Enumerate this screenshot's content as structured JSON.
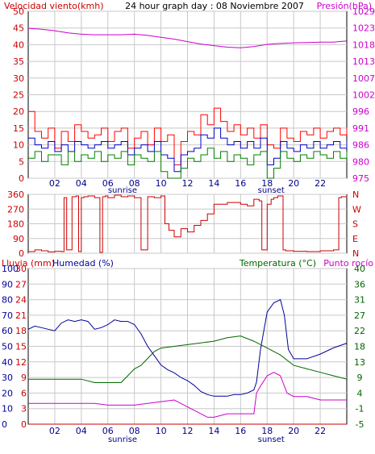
{
  "chart_data": [
    {
      "type": "line",
      "title": "24 hour graph day : 08 Noviembre 2007",
      "left_label": "Velocidad viento(kmh)",
      "right_label": "Presión(hPa)",
      "left_ticks": [
        0,
        5,
        10,
        15,
        20,
        25,
        30,
        35,
        40,
        45,
        50
      ],
      "left_range": [
        0,
        50
      ],
      "right_ticks": [
        975,
        980,
        986,
        991,
        996,
        1002,
        1007,
        1013,
        1018,
        1023,
        1029
      ],
      "right_range": [
        975,
        1029
      ],
      "x_ticks": [
        "02",
        "04",
        "06",
        "08",
        "10",
        "12",
        "14",
        "16",
        "18",
        "20",
        "22"
      ],
      "x_range": [
        0,
        24
      ],
      "sunrise_label": "sunrise",
      "sunset_label": "sunset",
      "sunrise_hour": 7.1,
      "sunset_hour": 18.3,
      "colors": {
        "gust": "#ff0000",
        "avg": "#0000cc",
        "min": "#008000",
        "pressure": "#cc00cc",
        "left_axis": "#cc0000",
        "right_axis": "#cc00cc"
      },
      "series": [
        {
          "role": "pressure",
          "axis": "right",
          "x": [
            0,
            1,
            2,
            3,
            4,
            5,
            6,
            7,
            8,
            9,
            10,
            11,
            12,
            13,
            14,
            15,
            16,
            17,
            18,
            19,
            20,
            21,
            22,
            23,
            24
          ],
          "values": [
            1023.5,
            1023.2,
            1022.7,
            1022.0,
            1021.6,
            1021.4,
            1021.4,
            1021.4,
            1021.6,
            1021.2,
            1020.6,
            1020.0,
            1019.2,
            1018.4,
            1017.9,
            1017.4,
            1017.2,
            1017.6,
            1018.3,
            1018.6,
            1018.8,
            1018.9,
            1019.0,
            1019.0,
            1019.4
          ]
        },
        {
          "role": "gust",
          "axis": "left",
          "x": [
            0,
            0.5,
            1,
            1.5,
            2,
            2.5,
            3,
            3.5,
            4,
            4.5,
            5,
            5.5,
            6,
            6.5,
            7,
            7.5,
            8,
            8.5,
            9,
            9.5,
            10,
            10.5,
            11,
            11.5,
            12,
            12.5,
            13,
            13.5,
            14,
            14.5,
            15,
            15.5,
            16,
            16.5,
            17,
            17.5,
            18,
            18.5,
            19,
            19.5,
            20,
            20.5,
            21,
            21.5,
            22,
            22.5,
            23,
            23.5,
            24
          ],
          "values": [
            20,
            14,
            12,
            15,
            9,
            14,
            11,
            16,
            14,
            12,
            13,
            15,
            11,
            14,
            15,
            9,
            12,
            14,
            10,
            15,
            11,
            13,
            4,
            11,
            14,
            13,
            19,
            16,
            21,
            17,
            14,
            16,
            13,
            15,
            12,
            16,
            10,
            9,
            15,
            12,
            11,
            14,
            13,
            15,
            12,
            14,
            15,
            13,
            15
          ]
        },
        {
          "role": "avg",
          "axis": "left",
          "x": [
            0,
            0.5,
            1,
            1.5,
            2,
            2.5,
            3,
            3.5,
            4,
            4.5,
            5,
            5.5,
            6,
            6.5,
            7,
            7.5,
            8,
            8.5,
            9,
            9.5,
            10,
            10.5,
            11,
            11.5,
            12,
            12.5,
            13,
            13.5,
            14,
            14.5,
            15,
            15.5,
            16,
            16.5,
            17,
            17.5,
            18,
            18.5,
            19,
            19.5,
            20,
            20.5,
            21,
            21.5,
            22,
            22.5,
            23,
            23.5,
            24
          ],
          "values": [
            12,
            10,
            9,
            11,
            8,
            10,
            8,
            11,
            10,
            9,
            10,
            11,
            9,
            10,
            11,
            7,
            9,
            10,
            8,
            11,
            7,
            6,
            2,
            7,
            8,
            9,
            13,
            12,
            15,
            12,
            10,
            11,
            9,
            11,
            9,
            12,
            4,
            6,
            11,
            9,
            8,
            10,
            9,
            11,
            9,
            10,
            11,
            9,
            11
          ]
        },
        {
          "role": "min",
          "axis": "left",
          "x": [
            0,
            0.5,
            1,
            1.5,
            2,
            2.5,
            3,
            3.5,
            4,
            4.5,
            5,
            5.5,
            6,
            6.5,
            7,
            7.5,
            8,
            8.5,
            9,
            9.5,
            10,
            10.5,
            11,
            11.5,
            12,
            12.5,
            13,
            13.5,
            14,
            14.5,
            15,
            15.5,
            16,
            16.5,
            17,
            17.5,
            18,
            18.5,
            19,
            19.5,
            20,
            20.5,
            21,
            21.5,
            22,
            22.5,
            23,
            23.5,
            24
          ],
          "values": [
            6,
            8,
            5,
            7,
            7,
            4,
            8,
            5,
            7,
            6,
            8,
            5,
            7,
            6,
            8,
            4,
            7,
            6,
            5,
            8,
            2,
            0,
            0,
            3,
            6,
            5,
            7,
            9,
            6,
            8,
            5,
            7,
            6,
            4,
            7,
            8,
            0,
            3,
            8,
            6,
            5,
            7,
            6,
            8,
            7,
            6,
            8,
            6,
            8
          ]
        }
      ]
    },
    {
      "type": "line",
      "left_ticks": [
        0,
        90,
        180,
        270,
        360
      ],
      "left_range": [
        0,
        360
      ],
      "right_ticks": [
        "N",
        "E",
        "S",
        "W",
        "N"
      ],
      "x_range": [
        0,
        24
      ],
      "colors": {
        "direction": "#cc0000",
        "axis": "#cc0000"
      },
      "series": [
        {
          "role": "wind-direction",
          "x": [
            0,
            0.5,
            1,
            1.5,
            2,
            2.5,
            2.7,
            2.9,
            3.3,
            3.6,
            3.8,
            4.0,
            4.2,
            4.5,
            5,
            5.4,
            5.6,
            5.8,
            6,
            6.5,
            7,
            7.5,
            8,
            8.5,
            9,
            9.5,
            10,
            10.3,
            10.6,
            11,
            11.5,
            12,
            12.5,
            13,
            13.5,
            14,
            15,
            16,
            16.5,
            17,
            17.4,
            17.6,
            18,
            18.3,
            18.5,
            18.8,
            19.2,
            19.4,
            20,
            21,
            22,
            23,
            23.4,
            23.6,
            24
          ],
          "values": [
            10,
            20,
            15,
            8,
            12,
            10,
            340,
            20,
            345,
            350,
            10,
            340,
            345,
            350,
            340,
            5,
            345,
            350,
            340,
            355,
            345,
            350,
            340,
            20,
            345,
            340,
            350,
            180,
            140,
            100,
            150,
            130,
            170,
            200,
            240,
            300,
            310,
            300,
            290,
            330,
            320,
            20,
            300,
            330,
            340,
            350,
            20,
            15,
            12,
            10,
            15,
            20,
            340,
            345,
            350
          ]
        }
      ]
    },
    {
      "type": "line",
      "left1_label": "Lluvia (mm)",
      "left2_label": "Humedad (%)",
      "right_label": "Temperatura (°C)",
      "right2_label": "Punto rocío",
      "left1_ticks": [
        0,
        3,
        6,
        9,
        12,
        15,
        18,
        21,
        24,
        27,
        30
      ],
      "left1_range": [
        0,
        30
      ],
      "left2_ticks": [
        0,
        10,
        20,
        30,
        40,
        50,
        60,
        70,
        80,
        90,
        100
      ],
      "left2_range": [
        0,
        100
      ],
      "right_ticks": [
        -5,
        -1,
        4,
        9,
        13,
        18,
        22,
        27,
        31,
        36,
        40
      ],
      "right_range": [
        -5,
        40
      ],
      "x_ticks": [
        "02",
        "04",
        "06",
        "08",
        "10",
        "12",
        "14",
        "16",
        "18",
        "20",
        "22"
      ],
      "x_range": [
        0,
        24
      ],
      "sunrise_label": "sunrise",
      "sunset_label": "sunset",
      "sunrise_hour": 7.1,
      "sunset_hour": 18.3,
      "colors": {
        "rain": "#cc0000",
        "humidity": "#000099",
        "temperature": "#006600",
        "dewpoint": "#cc00cc",
        "left1_axis": "#cc0000",
        "left2_axis": "#000099",
        "right_axis": "#006600"
      },
      "series": [
        {
          "role": "humidity",
          "axis": "left2",
          "x": [
            0,
            0.5,
            1,
            1.5,
            2,
            2.5,
            3,
            3.5,
            4,
            4.5,
            5,
            5.5,
            6,
            6.5,
            7,
            7.5,
            8,
            8.5,
            9,
            9.5,
            10,
            10.5,
            11,
            11.5,
            12,
            12.5,
            13,
            13.5,
            14,
            14.5,
            15,
            15.5,
            16,
            16.5,
            17,
            17.2,
            17.5,
            18,
            18.5,
            19,
            19.3,
            19.6,
            20,
            21,
            22,
            23,
            24
          ],
          "values": [
            61,
            63,
            62,
            61,
            60,
            65,
            67,
            66,
            67,
            66,
            61,
            62,
            64,
            67,
            66,
            66,
            64,
            58,
            50,
            44,
            38,
            35,
            33,
            30,
            28,
            25,
            21,
            19,
            18,
            18,
            18,
            19,
            19,
            20,
            22,
            27,
            48,
            72,
            78,
            80,
            70,
            48,
            42,
            42,
            45,
            49,
            52
          ]
        },
        {
          "role": "temperature",
          "axis": "right",
          "x": [
            0,
            1,
            2,
            3,
            4,
            5,
            6,
            7,
            7.5,
            8,
            8.5,
            9,
            9.5,
            10,
            11,
            12,
            13,
            14,
            15,
            16,
            17,
            18,
            19,
            20,
            21,
            22,
            23,
            24
          ],
          "values": [
            8,
            8,
            8,
            8,
            8,
            7,
            7,
            7,
            9,
            11,
            12,
            14,
            16,
            17,
            17.5,
            18,
            18.5,
            19,
            20,
            20.5,
            19,
            17,
            15,
            12,
            11,
            10,
            9,
            8
          ]
        },
        {
          "role": "dewpoint",
          "axis": "right",
          "x": [
            0,
            1,
            2,
            3,
            4,
            5,
            6,
            7,
            8,
            9,
            10,
            11,
            11.5,
            12,
            12.5,
            13,
            13.5,
            14,
            15,
            16,
            17,
            17.2,
            17.5,
            18,
            18.5,
            19,
            19.5,
            20,
            21,
            22,
            23,
            24
          ],
          "values": [
            1,
            1,
            1,
            1,
            1,
            1,
            0.5,
            0.5,
            0.5,
            1,
            1.5,
            2,
            1,
            0,
            -1,
            -2,
            -3,
            -3,
            -2,
            -2,
            -2,
            4,
            6,
            9,
            10,
            9,
            4,
            3,
            3,
            2,
            2,
            2
          ]
        },
        {
          "role": "rain",
          "axis": "left1",
          "x": [
            0,
            24
          ],
          "values": [
            0,
            0
          ]
        }
      ]
    }
  ]
}
